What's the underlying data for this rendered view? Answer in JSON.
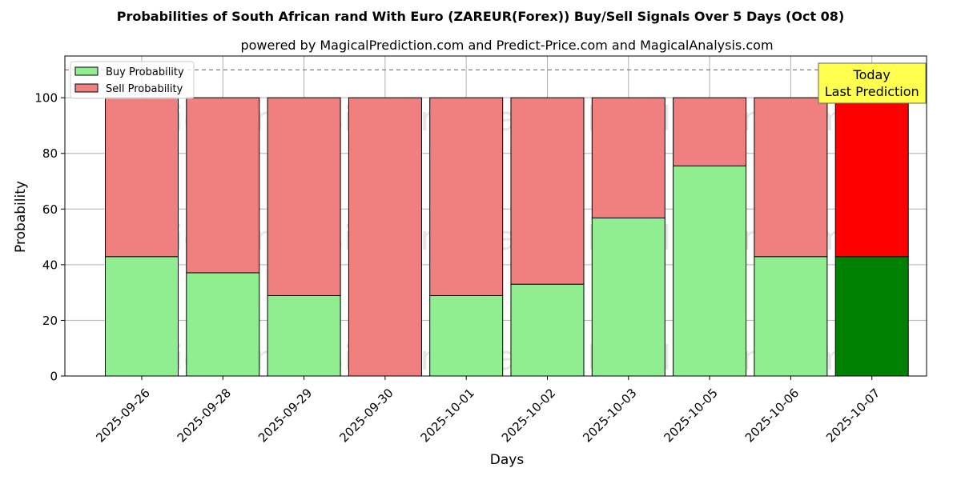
{
  "chart_data": {
    "type": "bar",
    "stacked": true,
    "title": "Probabilities of South African rand With Euro (ZAREUR(Forex)) Buy/Sell Signals Over 5 Days (Oct 08)",
    "subtitle": "powered by MagicalPrediction.com and Predict-Price.com and MagicalAnalysis.com",
    "xlabel": "Days",
    "ylabel": "Probability",
    "ylim": [
      0,
      115
    ],
    "yticks": [
      0,
      20,
      40,
      60,
      80,
      100
    ],
    "grid": true,
    "legend_placement": "top-left",
    "reference_line": 110,
    "categories": [
      "2025-09-26",
      "2025-09-28",
      "2025-09-29",
      "2025-09-30",
      "2025-10-01",
      "2025-10-02",
      "2025-10-03",
      "2025-10-05",
      "2025-10-06",
      "2025-10-07"
    ],
    "series": [
      {
        "name": "Buy Probability",
        "color": "#90ee90",
        "highlight_color": "#008000",
        "values": [
          42.9,
          37.1,
          28.9,
          0,
          28.9,
          33.0,
          56.8,
          75.5,
          42.9,
          42.9
        ]
      },
      {
        "name": "Sell Probability",
        "color": "#f08080",
        "highlight_color": "#ff0000",
        "values": [
          57.1,
          62.9,
          71.1,
          100,
          71.1,
          67.0,
          43.2,
          24.5,
          57.1,
          57.1
        ]
      }
    ],
    "highlight_index": 9,
    "annotation": {
      "line1": "Today",
      "line2": "Last Prediction",
      "color": "#ffff4d"
    },
    "watermarks": [
      "MagicalAnalysis.com",
      "MagicalPrediction.com"
    ]
  }
}
